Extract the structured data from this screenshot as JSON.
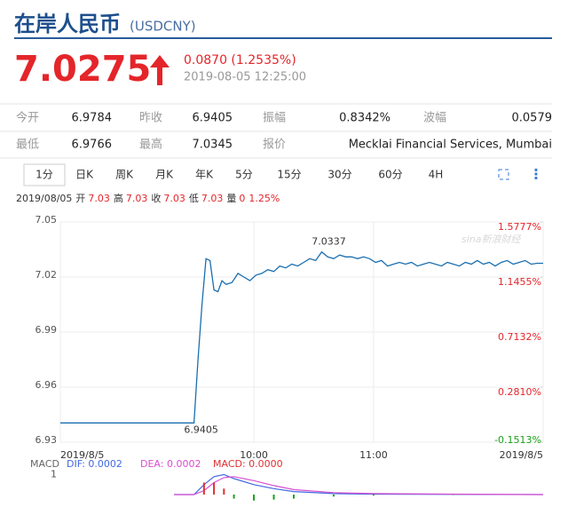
{
  "header": {
    "title": "在岸人民币",
    "symbol": "(USDCNY)"
  },
  "quote": {
    "price": "7.0275",
    "change": "0.0870 (1.2535%)",
    "time": "2019-08-05 12:25:00"
  },
  "stats": {
    "rows": [
      [
        [
          "今开",
          "6.9784"
        ],
        [
          "昨收",
          "6.9405"
        ],
        [
          "振幅",
          "0.8342%"
        ],
        [
          "波幅",
          "0.0579"
        ]
      ],
      [
        [
          "最低",
          "6.9766"
        ],
        [
          "最高",
          "7.0345"
        ],
        [
          "报价",
          "Mecklai Financial Services, Mumbai"
        ]
      ]
    ]
  },
  "tabs": [
    "1分",
    "日K",
    "周K",
    "月K",
    "年K",
    "5分",
    "15分",
    "30分",
    "60分",
    "4H"
  ],
  "selected_tab": 0,
  "info": {
    "date": "2019/08/05",
    "items": [
      [
        "开",
        "7.03"
      ],
      [
        "高",
        "7.03"
      ],
      [
        "收",
        "7.03"
      ],
      [
        "低",
        "7.03"
      ],
      [
        "量",
        "0"
      ]
    ],
    "change": "1.25%"
  },
  "watermark": "sina新浪财经",
  "chart_data": [
    {
      "type": "line",
      "color": "#1a6fb0",
      "grid": true,
      "x": [
        503,
        569,
        570,
        572,
        574,
        576,
        578,
        580,
        582,
        584,
        586,
        589,
        592,
        595,
        598,
        601,
        604,
        607,
        610,
        613,
        616,
        619,
        622,
        625,
        628,
        631,
        634,
        637,
        640,
        643,
        646,
        649,
        652,
        655,
        658,
        661,
        664,
        667,
        670,
        673,
        676,
        679,
        682,
        685,
        688,
        691,
        694,
        697,
        700,
        703,
        706,
        709,
        712,
        715,
        718,
        721,
        724,
        727,
        730,
        733,
        736,
        739,
        742,
        745
      ],
      "values": [
        6.9405,
        6.9405,
        6.9405,
        6.975,
        7.005,
        7.03,
        7.029,
        7.013,
        7.012,
        7.018,
        7.016,
        7.017,
        7.022,
        7.02,
        7.018,
        7.021,
        7.022,
        7.024,
        7.023,
        7.026,
        7.025,
        7.027,
        7.026,
        7.028,
        7.03,
        7.029,
        7.0337,
        7.031,
        7.03,
        7.032,
        7.031,
        7.031,
        7.03,
        7.031,
        7.03,
        7.028,
        7.029,
        7.026,
        7.027,
        7.028,
        7.027,
        7.028,
        7.026,
        7.027,
        7.028,
        7.027,
        7.026,
        7.028,
        7.027,
        7.026,
        7.028,
        7.027,
        7.029,
        7.027,
        7.028,
        7.026,
        7.028,
        7.029,
        7.027,
        7.028,
        7.029,
        7.027,
        7.0275,
        7.0275
      ],
      "xlim": [
        503,
        745
      ],
      "xticks": [
        {
          "value": 503,
          "label": "2019/8/5"
        },
        {
          "value": 600,
          "label": "10:00"
        },
        {
          "value": 660,
          "label": "11:00"
        },
        {
          "value": 745,
          "label": "2019/8/5"
        }
      ],
      "ylim": [
        6.93,
        7.05
      ],
      "yticks": [
        7.05,
        7.02,
        6.99,
        6.96,
        6.93
      ],
      "y2lim": [
        -0.1513,
        1.5777
      ],
      "y2ticks": [
        {
          "value": 1.5777,
          "label": "1.5777%"
        },
        {
          "value": 1.1455,
          "label": "1.1455%"
        },
        {
          "value": 0.7132,
          "label": "0.7132%"
        },
        {
          "value": 0.281,
          "label": "0.2810%"
        },
        {
          "value": -0.1513,
          "label": "-0.1513%"
        }
      ],
      "annotations": [
        {
          "text": "7.0337",
          "x": 634,
          "y": 7.0337,
          "position": "above"
        },
        {
          "text": "6.9405",
          "x": 570,
          "y": 6.9405,
          "position": "below"
        }
      ]
    },
    {
      "type": "line",
      "title": "MACD",
      "xlim": [
        503,
        745
      ],
      "ylim": [
        -0.4,
        1.2
      ],
      "yticks": [
        1
      ],
      "x": [
        560,
        570,
        575,
        580,
        585,
        590,
        600,
        610,
        620,
        640,
        660,
        700,
        745
      ],
      "series": [
        {
          "name": "DIF: 0.0002",
          "color": "#4169e1",
          "values": [
            0,
            0,
            0.5,
            0.9,
            1.0,
            0.8,
            0.5,
            0.3,
            0.15,
            0.05,
            0.02,
            0.01,
            0
          ]
        },
        {
          "name": "DEA: 0.0002",
          "color": "#d94fd0",
          "values": [
            0,
            0,
            0.2,
            0.6,
            0.85,
            0.9,
            0.7,
            0.45,
            0.25,
            0.1,
            0.05,
            0.02,
            0
          ]
        },
        {
          "name": "MACD: 0.0000",
          "type": "bar",
          "color": "#e03030",
          "down_color": "#1aa01a",
          "values": [
            0,
            0,
            0.6,
            0.6,
            0.3,
            -0.2,
            -0.3,
            -0.25,
            -0.2,
            -0.1,
            -0.05,
            -0.02,
            0
          ]
        }
      ]
    }
  ]
}
